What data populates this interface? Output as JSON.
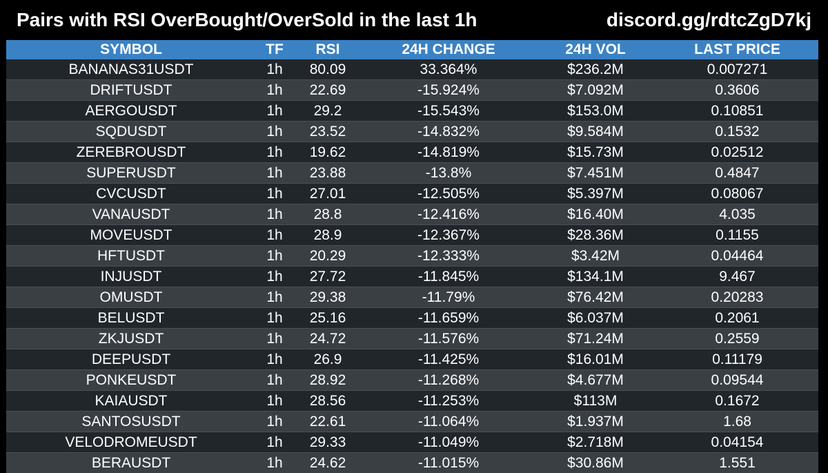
{
  "header": {
    "title": "Pairs with RSI OverBought/OverSold in the last 1h",
    "link": "discord.gg/rdtcZgD7kj"
  },
  "table": {
    "columns": [
      "SYMBOL",
      "TF",
      "RSI",
      "24H CHANGE",
      "24H VOL",
      "LAST PRICE"
    ],
    "rows": [
      [
        "BANANAS31USDT",
        "1h",
        "80.09",
        "33.364%",
        "$236.2M",
        "0.007271"
      ],
      [
        "DRIFTUSDT",
        "1h",
        "22.69",
        "-15.924%",
        "$7.092M",
        "0.3606"
      ],
      [
        "AERGOUSDT",
        "1h",
        "29.2",
        "-15.543%",
        "$153.0M",
        "0.10851"
      ],
      [
        "SQDUSDT",
        "1h",
        "23.52",
        "-14.832%",
        "$9.584M",
        "0.1532"
      ],
      [
        "ZEREBROUSDT",
        "1h",
        "19.62",
        "-14.819%",
        "$15.73M",
        "0.02512"
      ],
      [
        "SUPERUSDT",
        "1h",
        "23.88",
        "-13.8%",
        "$7.451M",
        "0.4847"
      ],
      [
        "CVCUSDT",
        "1h",
        "27.01",
        "-12.505%",
        "$5.397M",
        "0.08067"
      ],
      [
        "VANAUSDT",
        "1h",
        "28.8",
        "-12.416%",
        "$16.40M",
        "4.035"
      ],
      [
        "MOVEUSDT",
        "1h",
        "28.9",
        "-12.367%",
        "$28.36M",
        "0.1155"
      ],
      [
        "HFTUSDT",
        "1h",
        "20.29",
        "-12.333%",
        "$3.42M",
        "0.04464"
      ],
      [
        "INJUSDT",
        "1h",
        "27.72",
        "-11.845%",
        "$134.1M",
        "9.467"
      ],
      [
        "OMUSDT",
        "1h",
        "29.38",
        "-11.79%",
        "$76.42M",
        "0.20283"
      ],
      [
        "BELUSDT",
        "1h",
        "25.16",
        "-11.659%",
        "$6.037M",
        "0.2061"
      ],
      [
        "ZKJUSDT",
        "1h",
        "24.72",
        "-11.576%",
        "$71.24M",
        "0.2559"
      ],
      [
        "DEEPUSDT",
        "1h",
        "26.9",
        "-11.425%",
        "$16.01M",
        "0.11179"
      ],
      [
        "PONKEUSDT",
        "1h",
        "28.92",
        "-11.268%",
        "$4.677M",
        "0.09544"
      ],
      [
        "KAIAUSDT",
        "1h",
        "28.56",
        "-11.253%",
        "$113M",
        "0.1672"
      ],
      [
        "SANTOSUSDT",
        "1h",
        "22.61",
        "-11.064%",
        "$1.937M",
        "1.68"
      ],
      [
        "VELODROMEUSDT",
        "1h",
        "29.33",
        "-11.049%",
        "$2.718M",
        "0.04154"
      ],
      [
        "BERAUSDT",
        "1h",
        "24.62",
        "-11.015%",
        "$30.86M",
        "1.551"
      ]
    ]
  },
  "colors": {
    "background": "#000000",
    "header_row": "#3b82c4",
    "row_dark": "#21262b",
    "row_light": "#3a3f44",
    "text": "#ffffff"
  }
}
